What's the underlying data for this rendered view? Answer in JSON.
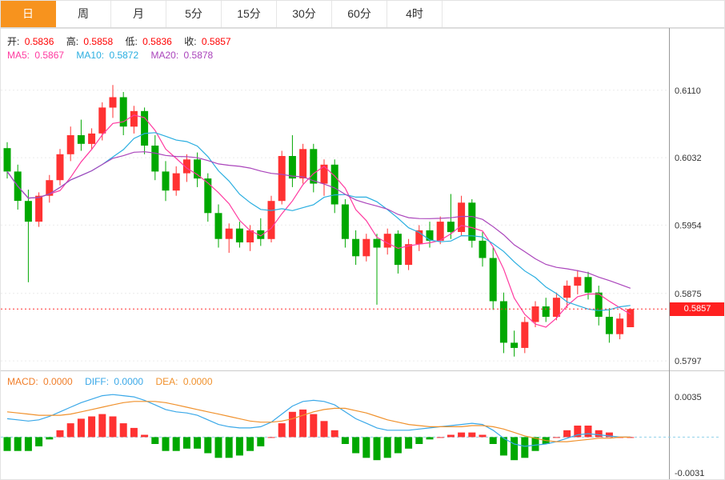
{
  "tabs": {
    "items": [
      {
        "label": "日",
        "active": true
      },
      {
        "label": "周",
        "active": false
      },
      {
        "label": "月",
        "active": false
      },
      {
        "label": "5分",
        "active": false
      },
      {
        "label": "15分",
        "active": false
      },
      {
        "label": "30分",
        "active": false
      },
      {
        "label": "60分",
        "active": false
      },
      {
        "label": "4时",
        "active": false
      }
    ]
  },
  "ohlc": {
    "open_label": "开:",
    "open": "0.5836",
    "high_label": "高:",
    "high": "0.5858",
    "low_label": "低:",
    "low": "0.5836",
    "close_label": "收:",
    "close": "0.5857"
  },
  "ma": {
    "ma5_label": "MA5:",
    "ma5": "0.5867",
    "ma10_label": "MA10:",
    "ma10": "0.5872",
    "ma20_label": "MA20:",
    "ma20": "0.5878"
  },
  "macd_header": {
    "macd_label": "MACD:",
    "macd": "0.0000",
    "diff_label": "DIFF:",
    "diff": "0.0000",
    "dea_label": "DEA:",
    "dea": "0.0000"
  },
  "price_axis": {
    "current": "0.5857"
  },
  "colors": {
    "accent_tab": "#f7931e",
    "up": "#ff3232",
    "down": "#00a800",
    "red_text": "#ff0000",
    "ma5": "#ff3aa0",
    "ma10": "#29aee0",
    "ma20": "#aa44bb",
    "macd_label": "#f07d28",
    "diff": "#3aa8e8",
    "dea": "#f0912c",
    "price_line": "#ff3030",
    "badge": "#ff2020",
    "zero_line": "#8fd0ea"
  },
  "chart_data": [
    {
      "type": "candlestick",
      "title": "Daily candlestick chart with MA5/MA10/MA20 overlays",
      "price_range": [
        0.5786,
        0.6182
      ],
      "y_ticks": [
        0.611,
        0.6032,
        0.5954,
        0.5875,
        0.5797
      ],
      "current_price": 0.5857,
      "ma_periods": [
        5,
        10,
        20
      ],
      "candles": [
        [
          0.6043,
          0.605,
          0.6008,
          0.6016
        ],
        [
          0.6016,
          0.6024,
          0.5972,
          0.5982
        ],
        [
          0.5982,
          0.5995,
          0.5888,
          0.5958
        ],
        [
          0.5958,
          0.5992,
          0.5952,
          0.5988
        ],
        [
          0.5988,
          0.6012,
          0.598,
          0.6006
        ],
        [
          0.6006,
          0.6042,
          0.6,
          0.6036
        ],
        [
          0.6036,
          0.6068,
          0.6028,
          0.6058
        ],
        [
          0.6058,
          0.6076,
          0.604,
          0.6048
        ],
        [
          0.6048,
          0.6066,
          0.6042,
          0.606
        ],
        [
          0.606,
          0.6096,
          0.6052,
          0.609
        ],
        [
          0.609,
          0.6116,
          0.6078,
          0.6102
        ],
        [
          0.6102,
          0.6108,
          0.6058,
          0.6068
        ],
        [
          0.6068,
          0.6092,
          0.606,
          0.6086
        ],
        [
          0.6086,
          0.609,
          0.6036,
          0.6046
        ],
        [
          0.6046,
          0.6058,
          0.6006,
          0.6016
        ],
        [
          0.6016,
          0.6028,
          0.5982,
          0.5994
        ],
        [
          0.5994,
          0.6022,
          0.5988,
          0.6014
        ],
        [
          0.6014,
          0.6036,
          0.6004,
          0.603
        ],
        [
          0.603,
          0.6038,
          0.5998,
          0.6008
        ],
        [
          0.6008,
          0.6014,
          0.5958,
          0.5968
        ],
        [
          0.5968,
          0.5978,
          0.5928,
          0.5938
        ],
        [
          0.5938,
          0.5956,
          0.5922,
          0.595
        ],
        [
          0.595,
          0.5958,
          0.5928,
          0.5934
        ],
        [
          0.5934,
          0.5954,
          0.5924,
          0.5948
        ],
        [
          0.5948,
          0.5962,
          0.593,
          0.5938
        ],
        [
          0.5938,
          0.5988,
          0.5934,
          0.5982
        ],
        [
          0.5982,
          0.604,
          0.5978,
          0.6034
        ],
        [
          0.6034,
          0.6058,
          0.5998,
          0.6008
        ],
        [
          0.6008,
          0.6048,
          0.6002,
          0.6042
        ],
        [
          0.6042,
          0.6048,
          0.5992,
          0.6002
        ],
        [
          0.6002,
          0.603,
          0.5988,
          0.6024
        ],
        [
          0.6024,
          0.603,
          0.5968,
          0.5978
        ],
        [
          0.5978,
          0.5984,
          0.5928,
          0.5938
        ],
        [
          0.5938,
          0.5948,
          0.5908,
          0.5918
        ],
        [
          0.5918,
          0.5944,
          0.5912,
          0.5938
        ],
        [
          0.5938,
          0.5944,
          0.5862,
          0.5928
        ],
        [
          0.5928,
          0.595,
          0.592,
          0.5944
        ],
        [
          0.5944,
          0.5948,
          0.5898,
          0.5908
        ],
        [
          0.5908,
          0.5938,
          0.5902,
          0.5932
        ],
        [
          0.5932,
          0.5954,
          0.5924,
          0.5948
        ],
        [
          0.5948,
          0.5958,
          0.5928,
          0.5936
        ],
        [
          0.5936,
          0.5964,
          0.5932,
          0.5958
        ],
        [
          0.5958,
          0.599,
          0.5938,
          0.5946
        ],
        [
          0.5946,
          0.5988,
          0.5942,
          0.598
        ],
        [
          0.598,
          0.5984,
          0.5928,
          0.5936
        ],
        [
          0.5936,
          0.5946,
          0.5906,
          0.5916
        ],
        [
          0.5916,
          0.5928,
          0.5856,
          0.5866
        ],
        [
          0.5866,
          0.5876,
          0.5806,
          0.5818
        ],
        [
          0.5818,
          0.5832,
          0.5802,
          0.5812
        ],
        [
          0.5812,
          0.5848,
          0.5806,
          0.5842
        ],
        [
          0.5842,
          0.5866,
          0.5836,
          0.586
        ],
        [
          0.586,
          0.587,
          0.5842,
          0.5848
        ],
        [
          0.5848,
          0.5876,
          0.5844,
          0.587
        ],
        [
          0.587,
          0.589,
          0.5858,
          0.5884
        ],
        [
          0.5884,
          0.5902,
          0.5874,
          0.5894
        ],
        [
          0.5894,
          0.59,
          0.5868,
          0.5876
        ],
        [
          0.5876,
          0.5884,
          0.5838,
          0.5848
        ],
        [
          0.5848,
          0.5858,
          0.5818,
          0.5828
        ],
        [
          0.5828,
          0.5852,
          0.5822,
          0.5846
        ],
        [
          0.5836,
          0.5858,
          0.5836,
          0.5857
        ]
      ]
    },
    {
      "type": "macd",
      "title": "MACD indicator panel",
      "value_range": [
        -0.0038,
        0.0058
      ],
      "y_ticks": [
        0.0035,
        -0.0031
      ],
      "hist": [
        -0.0012,
        -0.0012,
        -0.0012,
        -0.0008,
        -0.0002,
        0.0006,
        0.0012,
        0.0016,
        0.0018,
        0.002,
        0.0018,
        0.0012,
        0.0008,
        0.0002,
        -0.0006,
        -0.0012,
        -0.0012,
        -0.001,
        -0.001,
        -0.0014,
        -0.0018,
        -0.0018,
        -0.0016,
        -0.0012,
        -0.0008,
        0.0,
        0.0012,
        0.0022,
        0.0024,
        0.002,
        0.0014,
        0.0006,
        -0.0006,
        -0.0014,
        -0.0018,
        -0.002,
        -0.0018,
        -0.0014,
        -0.001,
        -0.0006,
        -0.0002,
        0.0,
        0.0002,
        0.0004,
        0.0004,
        0.0002,
        -0.0006,
        -0.0016,
        -0.002,
        -0.0018,
        -0.0012,
        -0.0006,
        0.0,
        0.0006,
        0.001,
        0.001,
        0.0006,
        0.0004,
        0.0,
        0.0
      ],
      "diff": [
        0.0016,
        0.0015,
        0.0014,
        0.0015,
        0.0018,
        0.0022,
        0.0026,
        0.003,
        0.0033,
        0.0036,
        0.0037,
        0.0036,
        0.0035,
        0.0032,
        0.0028,
        0.0024,
        0.0022,
        0.0021,
        0.0019,
        0.0015,
        0.0011,
        0.0009,
        0.0008,
        0.0008,
        0.0009,
        0.0013,
        0.002,
        0.0027,
        0.0031,
        0.0032,
        0.0031,
        0.0028,
        0.0022,
        0.0016,
        0.0012,
        0.0008,
        0.0006,
        0.0006,
        0.0006,
        0.0007,
        0.0008,
        0.0009,
        0.001,
        0.0011,
        0.0012,
        0.0011,
        0.0006,
        -0.0001,
        -0.0006,
        -0.0008,
        -0.0007,
        -0.0006,
        -0.0004,
        -0.0001,
        0.0002,
        0.0003,
        0.0002,
        0.0001,
        0.0,
        0.0
      ],
      "dea": [
        0.0022,
        0.0021,
        0.002,
        0.0019,
        0.0019,
        0.0019,
        0.002,
        0.0022,
        0.0024,
        0.0026,
        0.0028,
        0.003,
        0.0031,
        0.0031,
        0.0031,
        0.003,
        0.0028,
        0.0026,
        0.0024,
        0.0022,
        0.002,
        0.0018,
        0.0016,
        0.0014,
        0.0013,
        0.0013,
        0.0014,
        0.0016,
        0.0019,
        0.0022,
        0.0024,
        0.0025,
        0.0025,
        0.0023,
        0.0021,
        0.0018,
        0.0015,
        0.0013,
        0.0011,
        0.001,
        0.0009,
        0.0009,
        0.0009,
        0.0009,
        0.001,
        0.001,
        0.0009,
        0.0007,
        0.0004,
        0.0001,
        -0.0001,
        -0.0003,
        -0.0004,
        -0.0004,
        -0.0003,
        -0.0002,
        -0.0001,
        -0.0001,
        0.0,
        0.0
      ]
    }
  ]
}
